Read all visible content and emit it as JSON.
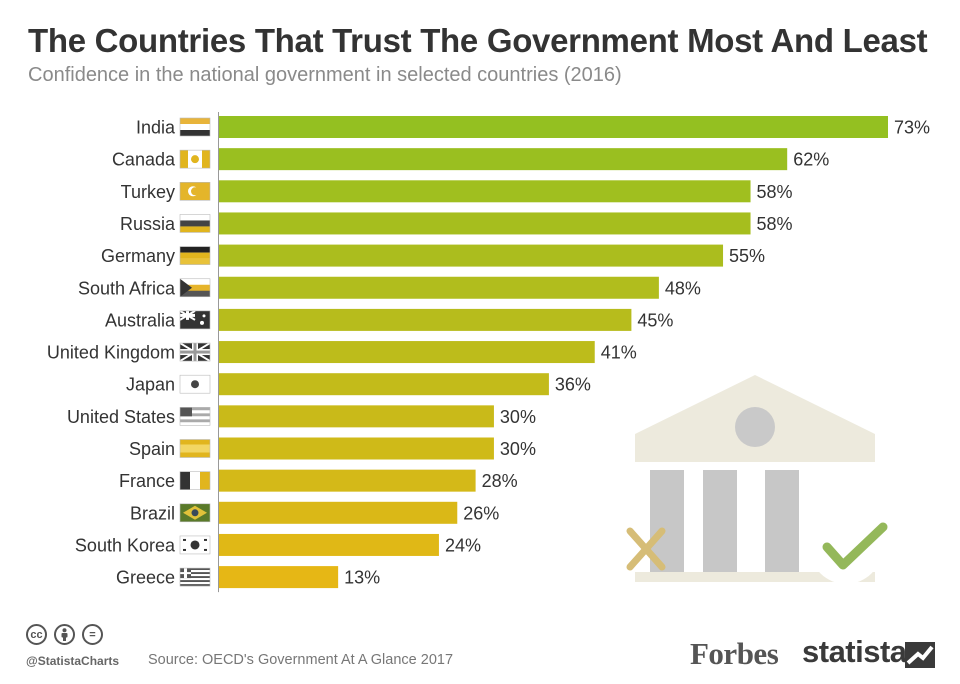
{
  "header": {
    "title": "The Countries That Trust The Government Most And Least",
    "subtitle": "Confidence in the national government in selected countries (2016)"
  },
  "footer": {
    "cc_icons": [
      "cc",
      "by",
      "="
    ],
    "handle": "@StatistaCharts",
    "source": "Source: OECD's Government At A Glance 2017",
    "forbes": "Forbes",
    "statista": "statista"
  },
  "illustration": {
    "icons": [
      "government-building-icon",
      "cross-mark-icon",
      "check-mark-icon"
    ]
  },
  "colors": {
    "title": "#333333",
    "high_bar": "#94c021",
    "low_bar": "#e6b715",
    "label": "#333333"
  },
  "chart_data": {
    "type": "bar",
    "orientation": "horizontal",
    "categories": [
      "India",
      "Canada",
      "Turkey",
      "Russia",
      "Germany",
      "South Africa",
      "Australia",
      "United Kingdom",
      "Japan",
      "United States",
      "Spain",
      "France",
      "Brazil",
      "South Korea",
      "Greece"
    ],
    "flags": [
      "flag-india-icon",
      "flag-canada-icon",
      "flag-turkey-icon",
      "flag-russia-icon",
      "flag-germany-icon",
      "flag-south-africa-icon",
      "flag-australia-icon",
      "flag-uk-icon",
      "flag-japan-icon",
      "flag-usa-icon",
      "flag-spain-icon",
      "flag-france-icon",
      "flag-brazil-icon",
      "flag-south-korea-icon",
      "flag-greece-icon"
    ],
    "values": [
      73,
      62,
      58,
      58,
      55,
      48,
      45,
      41,
      36,
      30,
      30,
      28,
      26,
      24,
      13
    ],
    "value_suffix": "%",
    "xlim": [
      0,
      73
    ],
    "color_scale": "green for highest values to yellow for lowest",
    "grid": false,
    "legend": "none"
  }
}
